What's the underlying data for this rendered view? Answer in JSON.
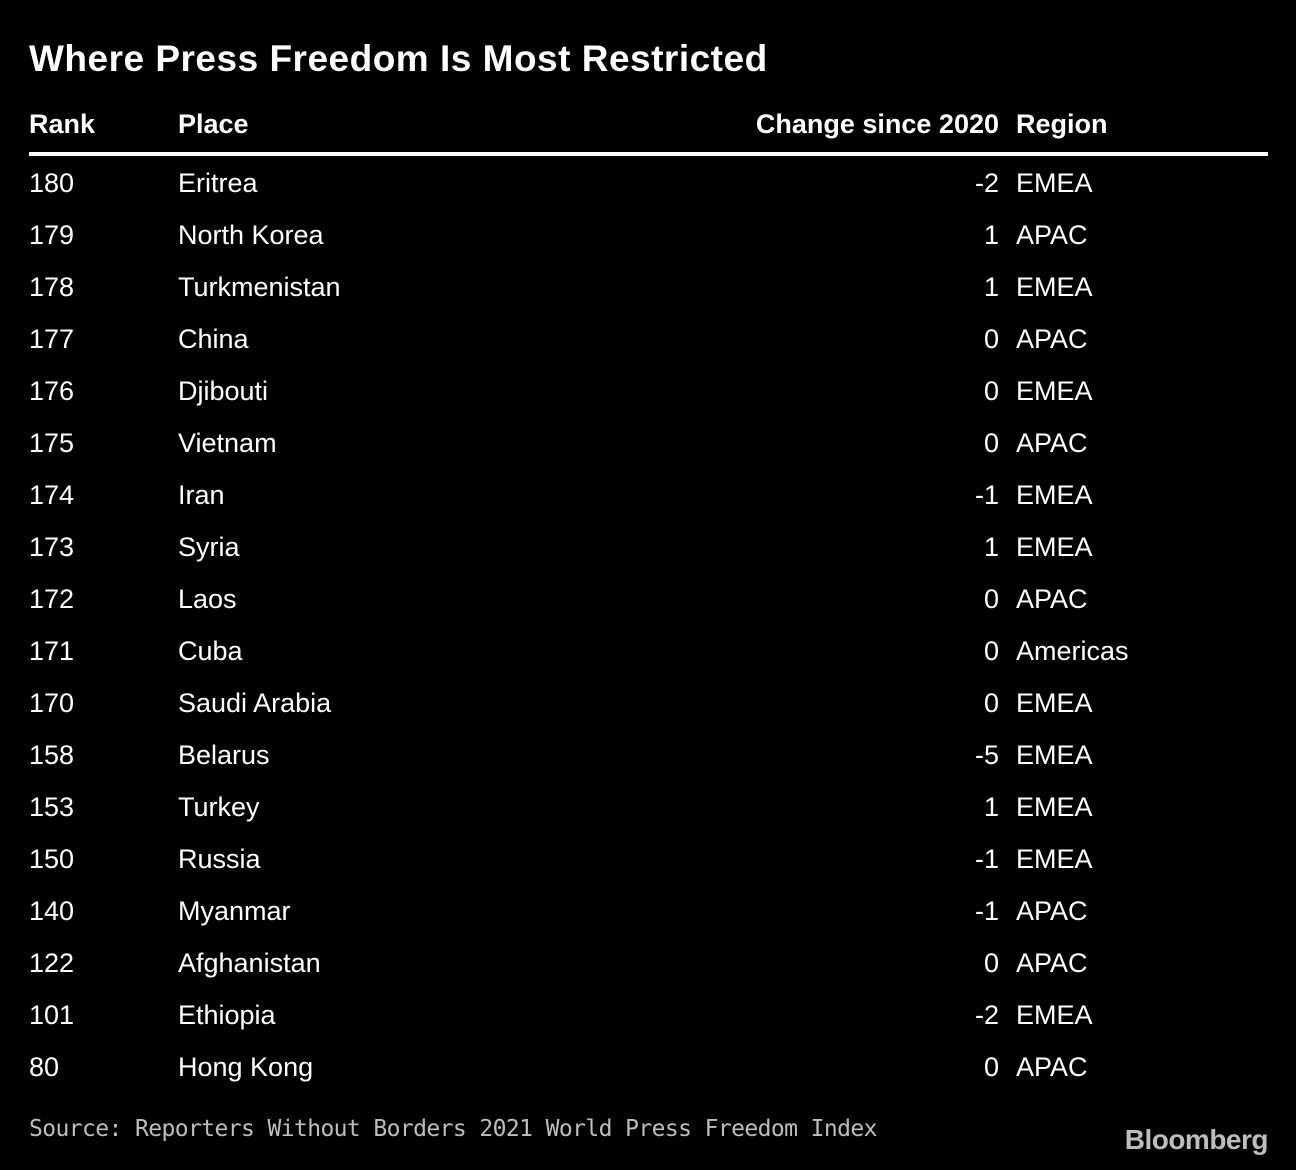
{
  "title": "Where Press Freedom Is Most Restricted",
  "columns": {
    "rank": "Rank",
    "place": "Place",
    "change": "Change since 2020",
    "region": "Region"
  },
  "chart_data": {
    "type": "table",
    "title": "Where Press Freedom Is Most Restricted",
    "columns": [
      "Rank",
      "Place",
      "Change since 2020",
      "Region"
    ],
    "rows": [
      {
        "rank": "180",
        "place": "Eritrea",
        "change": "-2",
        "region": "EMEA"
      },
      {
        "rank": "179",
        "place": "North Korea",
        "change": "1",
        "region": "APAC"
      },
      {
        "rank": "178",
        "place": "Turkmenistan",
        "change": "1",
        "region": "EMEA"
      },
      {
        "rank": "177",
        "place": "China",
        "change": "0",
        "region": "APAC"
      },
      {
        "rank": "176",
        "place": "Djibouti",
        "change": "0",
        "region": "EMEA"
      },
      {
        "rank": "175",
        "place": "Vietnam",
        "change": "0",
        "region": "APAC"
      },
      {
        "rank": "174",
        "place": "Iran",
        "change": "-1",
        "region": "EMEA"
      },
      {
        "rank": "173",
        "place": "Syria",
        "change": "1",
        "region": "EMEA"
      },
      {
        "rank": "172",
        "place": "Laos",
        "change": "0",
        "region": "APAC"
      },
      {
        "rank": "171",
        "place": "Cuba",
        "change": "0",
        "region": "Americas"
      },
      {
        "rank": "170",
        "place": "Saudi Arabia",
        "change": "0",
        "region": "EMEA"
      },
      {
        "rank": "158",
        "place": "Belarus",
        "change": "-5",
        "region": "EMEA"
      },
      {
        "rank": "153",
        "place": "Turkey",
        "change": "1",
        "region": "EMEA"
      },
      {
        "rank": "150",
        "place": "Russia",
        "change": "-1",
        "region": "EMEA"
      },
      {
        "rank": "140",
        "place": "Myanmar",
        "change": "-1",
        "region": "APAC"
      },
      {
        "rank": "122",
        "place": "Afghanistan",
        "change": "0",
        "region": "APAC"
      },
      {
        "rank": "101",
        "place": "Ethiopia",
        "change": "-2",
        "region": "EMEA"
      },
      {
        "rank": "80",
        "place": "Hong Kong",
        "change": "0",
        "region": "APAC"
      }
    ]
  },
  "source": "Source: Reporters Without Borders 2021 World Press Freedom Index",
  "logo": "Bloomberg",
  "colors": {
    "background": "#000000",
    "text": "#ffffff",
    "muted": "#bdbdbd"
  }
}
